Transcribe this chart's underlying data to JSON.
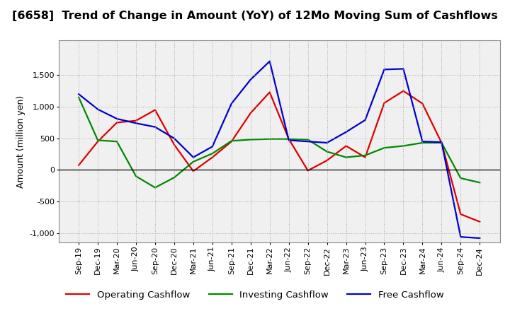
{
  "title": "[6658]  Trend of Change in Amount (YoY) of 12Mo Moving Sum of Cashflows",
  "ylabel": "Amount (million yen)",
  "background_color": "#ffffff",
  "plot_background": "#f0f0f0",
  "grid_color": "#aaaaaa",
  "x_labels": [
    "Sep-19",
    "Dec-19",
    "Mar-20",
    "Jun-20",
    "Sep-20",
    "Dec-20",
    "Mar-21",
    "Jun-21",
    "Sep-21",
    "Dec-21",
    "Mar-22",
    "Jun-22",
    "Sep-22",
    "Dec-22",
    "Mar-23",
    "Jun-23",
    "Sep-23",
    "Dec-23",
    "Mar-24",
    "Jun-24",
    "Sep-24",
    "Dec-24"
  ],
  "operating_cashflow": [
    75,
    450,
    750,
    780,
    950,
    400,
    -20,
    200,
    450,
    900,
    1230,
    490,
    -10,
    150,
    380,
    200,
    1060,
    1250,
    1050,
    430,
    -700,
    -820
  ],
  "investing_cashflow": [
    1150,
    470,
    450,
    -100,
    -280,
    -120,
    130,
    260,
    460,
    480,
    490,
    490,
    480,
    290,
    200,
    230,
    350,
    380,
    430,
    430,
    -130,
    -200
  ],
  "free_cashflow": [
    1200,
    960,
    810,
    740,
    680,
    500,
    200,
    370,
    1050,
    1430,
    1720,
    470,
    450,
    430,
    600,
    790,
    1590,
    1600,
    450,
    440,
    -1060,
    -1080
  ],
  "operating_color": "#dd0000",
  "investing_color": "#008800",
  "free_color": "#0000cc",
  "ylim": [
    -1150,
    2050
  ],
  "yticks": [
    -1000,
    -500,
    0,
    500,
    1000,
    1500
  ],
  "line_width": 1.6,
  "title_fontsize": 11.5,
  "axis_fontsize": 9,
  "tick_fontsize": 8,
  "legend_fontsize": 9.5
}
